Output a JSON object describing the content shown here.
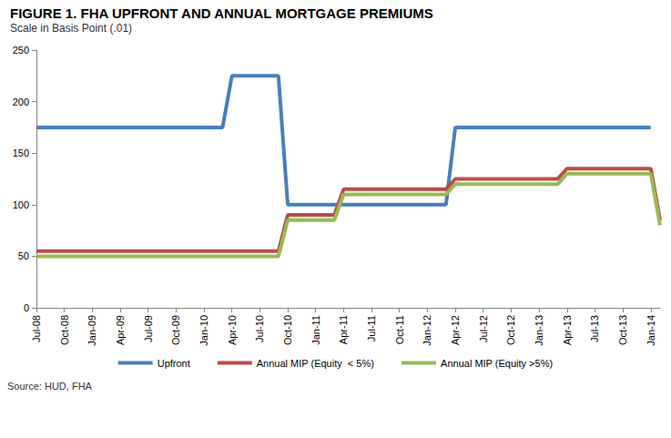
{
  "chart_data": {
    "type": "line",
    "title": "FIGURE 1. FHA UPFRONT AND ANNUAL MORTGAGE PREMIUMS",
    "subtitle": "Scale in Basis Point (.01)",
    "source": "Source: HUD, FHA",
    "categories": [
      "Jul-08",
      null,
      null,
      "Oct-08",
      null,
      null,
      "Jan-09",
      null,
      null,
      "Apr-09",
      null,
      null,
      "Jul-09",
      null,
      null,
      "Oct-09",
      null,
      null,
      "Jan-10",
      null,
      null,
      "Apr-10",
      null,
      null,
      "Jul-10",
      null,
      null,
      "Oct-10",
      null,
      null,
      "Jan-11",
      null,
      null,
      "Apr-11",
      null,
      null,
      "Jul-11",
      null,
      null,
      "Oct-11",
      null,
      null,
      "Jan-12",
      null,
      null,
      "Apr-12",
      null,
      null,
      "Jul-12",
      null,
      null,
      "Oct-12",
      null,
      null,
      "Jan-13",
      null,
      null,
      "Apr-13",
      null,
      null,
      "Jul-13",
      null,
      null,
      "Oct-13",
      null,
      null,
      "Jan-14",
      null
    ],
    "series": [
      {
        "name": "Upfront",
        "color": "#4a7ebb",
        "values": [
          175,
          175,
          175,
          175,
          175,
          175,
          175,
          175,
          175,
          175,
          175,
          175,
          175,
          175,
          175,
          175,
          175,
          175,
          175,
          175,
          175,
          225,
          225,
          225,
          225,
          225,
          225,
          100,
          100,
          100,
          100,
          100,
          100,
          100,
          100,
          100,
          100,
          100,
          100,
          100,
          100,
          100,
          100,
          100,
          100,
          175,
          175,
          175,
          175,
          175,
          175,
          175,
          175,
          175,
          175,
          175,
          175,
          175,
          175,
          175,
          175,
          175,
          175,
          175,
          175,
          175,
          175,
          null
        ]
      },
      {
        "name": "Annual MIP (Equity  < 5%)",
        "color": "#be4b48",
        "values": [
          55,
          55,
          55,
          55,
          55,
          55,
          55,
          55,
          55,
          55,
          55,
          55,
          55,
          55,
          55,
          55,
          55,
          55,
          55,
          55,
          55,
          55,
          55,
          55,
          55,
          55,
          55,
          90,
          90,
          90,
          90,
          90,
          90,
          115,
          115,
          115,
          115,
          115,
          115,
          115,
          115,
          115,
          115,
          115,
          115,
          125,
          125,
          125,
          125,
          125,
          125,
          125,
          125,
          125,
          125,
          125,
          125,
          135,
          135,
          135,
          135,
          135,
          135,
          135,
          135,
          135,
          135,
          85
        ]
      },
      {
        "name": "Annual MIP (Equity >5%)",
        "color": "#98b954",
        "values": [
          50,
          50,
          50,
          50,
          50,
          50,
          50,
          50,
          50,
          50,
          50,
          50,
          50,
          50,
          50,
          50,
          50,
          50,
          50,
          50,
          50,
          50,
          50,
          50,
          50,
          50,
          50,
          85,
          85,
          85,
          85,
          85,
          85,
          110,
          110,
          110,
          110,
          110,
          110,
          110,
          110,
          110,
          110,
          110,
          110,
          120,
          120,
          120,
          120,
          120,
          120,
          120,
          120,
          120,
          120,
          120,
          120,
          130,
          130,
          130,
          130,
          130,
          130,
          130,
          130,
          130,
          130,
          80
        ]
      }
    ],
    "ylim": [
      0,
      250
    ],
    "yticks": [
      0,
      50,
      100,
      150,
      200,
      250
    ],
    "grid": false,
    "legend": "bottom"
  }
}
